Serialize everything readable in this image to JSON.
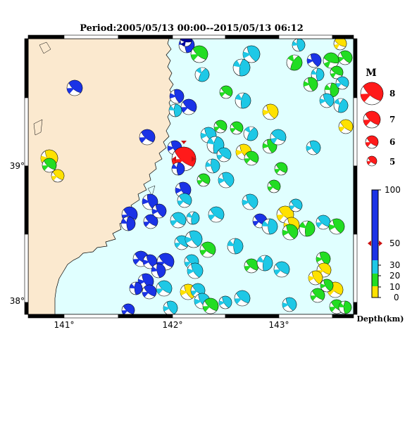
{
  "title": "Period:2005/05/13 00:00--2015/05/13 06:12",
  "colors": {
    "land": "#FBE9CF",
    "sea": "#E0FFFF",
    "event_red": "#FF1A1A",
    "depth_0_10": "#FFE100",
    "depth_10_30": "#22DD22",
    "depth_30_50": "#1EC8E6",
    "depth_50_100": "#1A33E6",
    "deep_dark": "#0000A0"
  },
  "axes": {
    "lon_ticks": [
      "141°",
      "142°",
      "143°"
    ],
    "lat_ticks": [
      "39°",
      "38°"
    ]
  },
  "magnitude_legend": {
    "title": "M",
    "items": [
      "8",
      "7",
      "6",
      "5"
    ]
  },
  "depth_colorbar": {
    "labels": [
      "100",
      "50",
      "30",
      "20",
      "10",
      "0"
    ],
    "axis_label": "Depth(km)",
    "marker_depth": 47
  },
  "latest_event": {
    "lon": 142.07,
    "lat": 39.05,
    "depth": 47,
    "color": "red"
  }
}
